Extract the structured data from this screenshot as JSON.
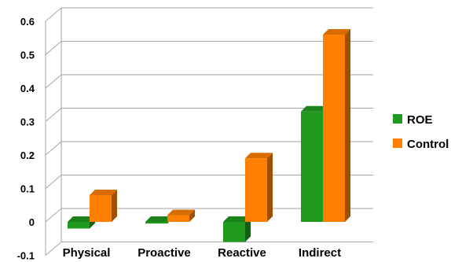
{
  "chart_data": {
    "type": "bar",
    "style": "3d-clustered-column",
    "categories": [
      "Physical",
      "Proactive",
      "Reactive",
      "Indirect"
    ],
    "series": [
      {
        "name": "ROE",
        "color": "#1f9a1f",
        "values": [
          -0.02,
          -0.005,
          -0.06,
          0.33
        ]
      },
      {
        "name": "Control",
        "color": "#ff7f00",
        "values": [
          0.08,
          0.02,
          0.19,
          0.56
        ]
      }
    ],
    "yticks": [
      "0.6",
      "0.5",
      "0.4",
      "0.3",
      "0.2",
      "0.1",
      "0",
      "-0.1"
    ],
    "ylim": [
      -0.1,
      0.6
    ],
    "grid": true,
    "legend": "right"
  }
}
